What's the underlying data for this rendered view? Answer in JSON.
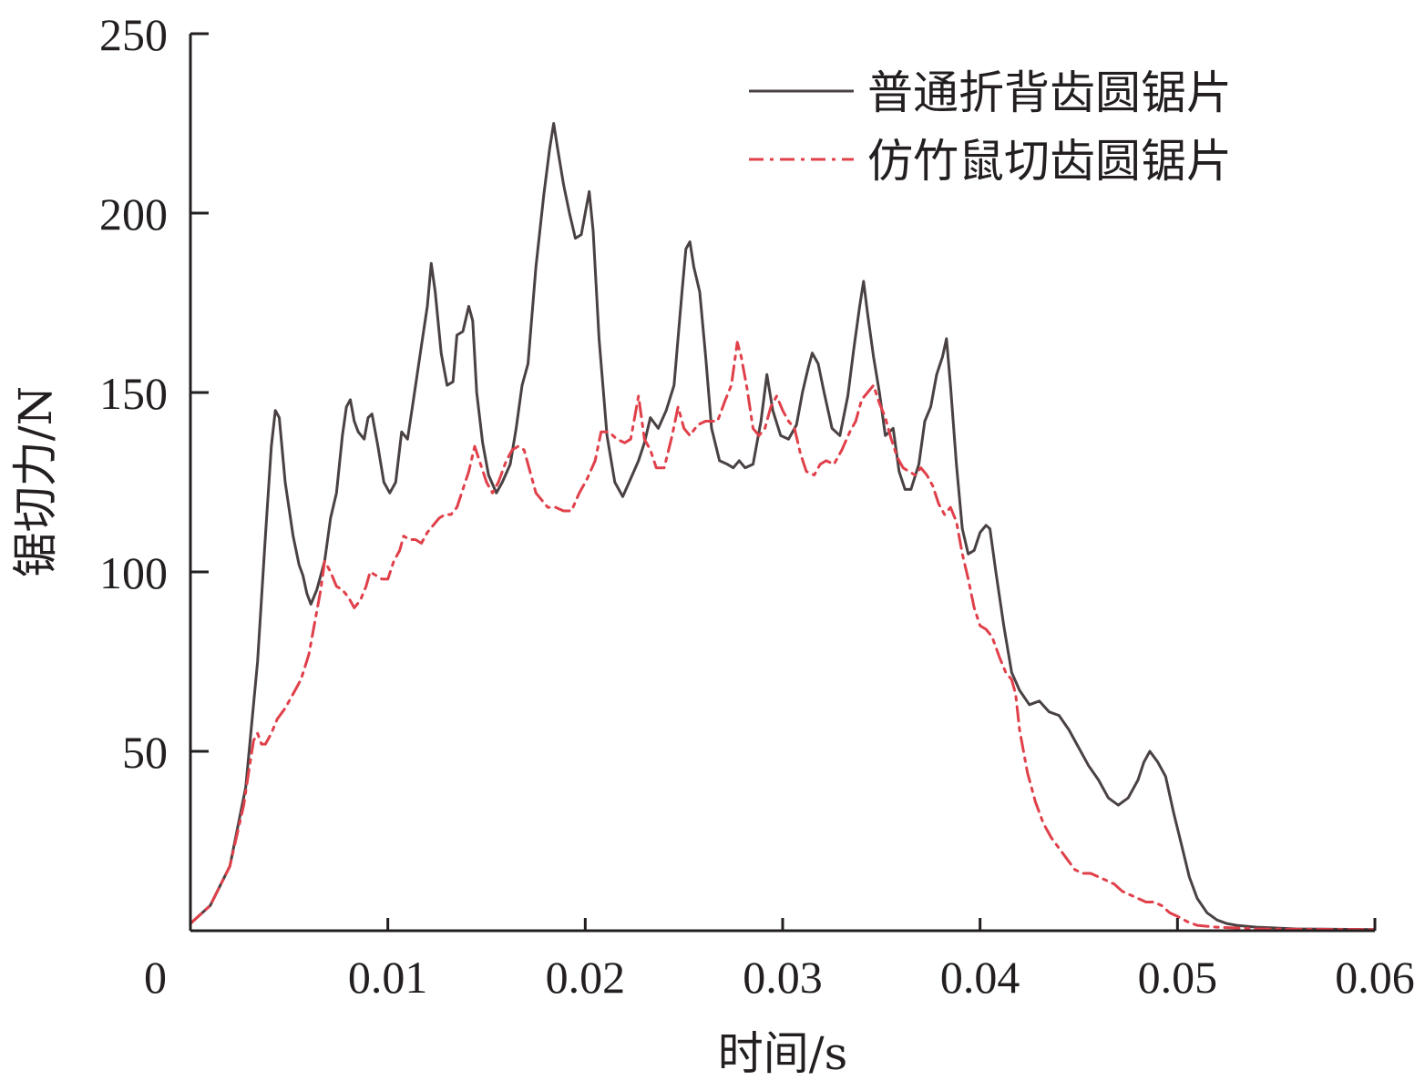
{
  "chart_data": {
    "type": "line",
    "title": "",
    "xlabel": "时间/s",
    "ylabel": "锯切力/N",
    "xlim": [
      0,
      0.06
    ],
    "ylim": [
      0,
      250
    ],
    "xticks": [
      0,
      0.01,
      0.02,
      0.03,
      0.04,
      0.05,
      0.06
    ],
    "xtick_labels": [
      "0",
      "0.01",
      "0.02",
      "0.03",
      "0.04",
      "0.05",
      "0.06"
    ],
    "yticks": [
      50,
      100,
      150,
      200,
      250
    ],
    "ytick_labels": [
      "50",
      "100",
      "150",
      "200",
      "250"
    ],
    "grid": false,
    "legend_position": "top-right",
    "series": [
      {
        "name": "普通折背齿圆锯片",
        "color": "#4a4142",
        "style": "solid",
        "points": [
          [
            0,
            2
          ],
          [
            0.001,
            7
          ],
          [
            0.002,
            18
          ],
          [
            0.0028,
            40
          ],
          [
            0.0034,
            75
          ],
          [
            0.0038,
            110
          ],
          [
            0.0041,
            135
          ],
          [
            0.0043,
            145
          ],
          [
            0.0045,
            143
          ],
          [
            0.0048,
            125
          ],
          [
            0.0052,
            110
          ],
          [
            0.0055,
            102
          ],
          [
            0.0057,
            99
          ],
          [
            0.0059,
            94
          ],
          [
            0.0061,
            91
          ],
          [
            0.0064,
            95
          ],
          [
            0.0068,
            103
          ],
          [
            0.0071,
            115
          ],
          [
            0.0074,
            122
          ],
          [
            0.0077,
            138
          ],
          [
            0.0079,
            146
          ],
          [
            0.0081,
            148
          ],
          [
            0.0083,
            142
          ],
          [
            0.0085,
            139
          ],
          [
            0.0088,
            137
          ],
          [
            0.009,
            143
          ],
          [
            0.0092,
            144
          ],
          [
            0.0095,
            135
          ],
          [
            0.0098,
            125
          ],
          [
            0.0101,
            122
          ],
          [
            0.0104,
            125
          ],
          [
            0.0107,
            139
          ],
          [
            0.011,
            137
          ],
          [
            0.0113,
            148
          ],
          [
            0.0117,
            163
          ],
          [
            0.012,
            174
          ],
          [
            0.0122,
            186
          ],
          [
            0.0124,
            178
          ],
          [
            0.0127,
            161
          ],
          [
            0.013,
            152
          ],
          [
            0.0133,
            153
          ],
          [
            0.0135,
            166
          ],
          [
            0.0138,
            167
          ],
          [
            0.0141,
            174
          ],
          [
            0.0143,
            170
          ],
          [
            0.0145,
            150
          ],
          [
            0.0148,
            136
          ],
          [
            0.0151,
            127
          ],
          [
            0.0155,
            122
          ],
          [
            0.0158,
            125
          ],
          [
            0.0162,
            130
          ],
          [
            0.0165,
            140
          ],
          [
            0.0168,
            152
          ],
          [
            0.0171,
            158
          ],
          [
            0.0175,
            185
          ],
          [
            0.0179,
            205
          ],
          [
            0.0182,
            218
          ],
          [
            0.0184,
            225
          ],
          [
            0.0186,
            218
          ],
          [
            0.0189,
            208
          ],
          [
            0.0192,
            200
          ],
          [
            0.0195,
            193
          ],
          [
            0.0198,
            194
          ],
          [
            0.02,
            200
          ],
          [
            0.0202,
            206
          ],
          [
            0.0204,
            195
          ],
          [
            0.0207,
            165
          ],
          [
            0.0211,
            138
          ],
          [
            0.0215,
            125
          ],
          [
            0.0219,
            121
          ],
          [
            0.0223,
            126
          ],
          [
            0.0227,
            131
          ],
          [
            0.023,
            136
          ],
          [
            0.0233,
            143
          ],
          [
            0.0237,
            140
          ],
          [
            0.0241,
            145
          ],
          [
            0.0245,
            152
          ],
          [
            0.0249,
            178
          ],
          [
            0.0251,
            190
          ],
          [
            0.0253,
            192
          ],
          [
            0.0255,
            185
          ],
          [
            0.0258,
            178
          ],
          [
            0.0261,
            160
          ],
          [
            0.0264,
            140
          ],
          [
            0.0268,
            131
          ],
          [
            0.0272,
            130
          ],
          [
            0.0275,
            129
          ],
          [
            0.0278,
            131
          ],
          [
            0.0281,
            129
          ],
          [
            0.0285,
            130
          ],
          [
            0.0289,
            142
          ],
          [
            0.0292,
            155
          ],
          [
            0.0295,
            145
          ],
          [
            0.0299,
            138
          ],
          [
            0.0303,
            137
          ],
          [
            0.0307,
            141
          ],
          [
            0.031,
            150
          ],
          [
            0.0313,
            157
          ],
          [
            0.0315,
            161
          ],
          [
            0.0318,
            158
          ],
          [
            0.0321,
            150
          ],
          [
            0.0325,
            140
          ],
          [
            0.0329,
            138
          ],
          [
            0.0333,
            149
          ],
          [
            0.0336,
            162
          ],
          [
            0.0339,
            174
          ],
          [
            0.0341,
            181
          ],
          [
            0.0343,
            172
          ],
          [
            0.0346,
            160
          ],
          [
            0.0349,
            150
          ],
          [
            0.0352,
            138
          ],
          [
            0.0356,
            140
          ],
          [
            0.0359,
            128
          ],
          [
            0.0362,
            123
          ],
          [
            0.0365,
            123
          ],
          [
            0.0369,
            130
          ],
          [
            0.0372,
            142
          ],
          [
            0.0375,
            146
          ],
          [
            0.0378,
            155
          ],
          [
            0.0381,
            160
          ],
          [
            0.0383,
            165
          ],
          [
            0.0385,
            152
          ],
          [
            0.0388,
            130
          ],
          [
            0.0391,
            112
          ],
          [
            0.0394,
            105
          ],
          [
            0.0397,
            106
          ],
          [
            0.04,
            111
          ],
          [
            0.0403,
            113
          ],
          [
            0.0405,
            112
          ],
          [
            0.0408,
            100
          ],
          [
            0.0412,
            85
          ],
          [
            0.0416,
            72
          ],
          [
            0.042,
            67
          ],
          [
            0.0425,
            63
          ],
          [
            0.043,
            64
          ],
          [
            0.0435,
            61
          ],
          [
            0.044,
            60
          ],
          [
            0.0445,
            56
          ],
          [
            0.045,
            51
          ],
          [
            0.0455,
            46
          ],
          [
            0.046,
            42
          ],
          [
            0.0465,
            37
          ],
          [
            0.047,
            35
          ],
          [
            0.0475,
            37
          ],
          [
            0.048,
            42
          ],
          [
            0.0483,
            47
          ],
          [
            0.0486,
            50
          ],
          [
            0.049,
            47
          ],
          [
            0.0494,
            43
          ],
          [
            0.0498,
            33
          ],
          [
            0.0502,
            24
          ],
          [
            0.0506,
            15
          ],
          [
            0.051,
            9
          ],
          [
            0.0515,
            5
          ],
          [
            0.052,
            3
          ],
          [
            0.0525,
            2
          ],
          [
            0.053,
            1.5
          ],
          [
            0.054,
            1
          ],
          [
            0.056,
            0.5
          ],
          [
            0.06,
            0.3
          ]
        ]
      },
      {
        "name": "仿竹鼠切齿圆锯片",
        "color": "#e0404a",
        "style": "dash-dot",
        "points": [
          [
            0,
            2
          ],
          [
            0.001,
            7
          ],
          [
            0.002,
            18
          ],
          [
            0.0027,
            35
          ],
          [
            0.003,
            46
          ],
          [
            0.0032,
            53
          ],
          [
            0.0034,
            55
          ],
          [
            0.0036,
            52
          ],
          [
            0.0038,
            52
          ],
          [
            0.0041,
            55
          ],
          [
            0.0044,
            59
          ],
          [
            0.0048,
            62
          ],
          [
            0.0052,
            66
          ],
          [
            0.0056,
            70
          ],
          [
            0.006,
            77
          ],
          [
            0.0063,
            86
          ],
          [
            0.0066,
            95
          ],
          [
            0.0068,
            103
          ],
          [
            0.0071,
            100
          ],
          [
            0.0074,
            96
          ],
          [
            0.0077,
            95
          ],
          [
            0.008,
            93
          ],
          [
            0.0083,
            90
          ],
          [
            0.0086,
            92
          ],
          [
            0.0089,
            96
          ],
          [
            0.0091,
            100
          ],
          [
            0.0094,
            99
          ],
          [
            0.0097,
            98
          ],
          [
            0.01,
            98
          ],
          [
            0.0103,
            103
          ],
          [
            0.0106,
            106
          ],
          [
            0.0108,
            110
          ],
          [
            0.0111,
            109
          ],
          [
            0.0114,
            109
          ],
          [
            0.0117,
            108
          ],
          [
            0.012,
            111
          ],
          [
            0.0123,
            113
          ],
          [
            0.0126,
            115
          ],
          [
            0.0129,
            116
          ],
          [
            0.0132,
            116
          ],
          [
            0.0135,
            118
          ],
          [
            0.0138,
            123
          ],
          [
            0.0141,
            128
          ],
          [
            0.0144,
            135
          ],
          [
            0.0147,
            130
          ],
          [
            0.015,
            125
          ],
          [
            0.0153,
            122
          ],
          [
            0.0156,
            125
          ],
          [
            0.016,
            131
          ],
          [
            0.0163,
            134
          ],
          [
            0.0166,
            135
          ],
          [
            0.0169,
            134
          ],
          [
            0.0172,
            128
          ],
          [
            0.0175,
            122
          ],
          [
            0.0178,
            120
          ],
          [
            0.0181,
            118
          ],
          [
            0.0185,
            118
          ],
          [
            0.0189,
            117
          ],
          [
            0.0193,
            117
          ],
          [
            0.0197,
            122
          ],
          [
            0.0201,
            126
          ],
          [
            0.0205,
            131
          ],
          [
            0.0208,
            139
          ],
          [
            0.0212,
            139
          ],
          [
            0.0216,
            137
          ],
          [
            0.022,
            136
          ],
          [
            0.0223,
            137
          ],
          [
            0.0227,
            149
          ],
          [
            0.023,
            137
          ],
          [
            0.0233,
            134
          ],
          [
            0.0236,
            129
          ],
          [
            0.024,
            129
          ],
          [
            0.0244,
            138
          ],
          [
            0.0247,
            146
          ],
          [
            0.025,
            140
          ],
          [
            0.0253,
            138
          ],
          [
            0.0257,
            141
          ],
          [
            0.0261,
            142
          ],
          [
            0.0264,
            142
          ],
          [
            0.0267,
            142
          ],
          [
            0.0271,
            148
          ],
          [
            0.0274,
            152
          ],
          [
            0.0277,
            164
          ],
          [
            0.0279,
            160
          ],
          [
            0.0282,
            151
          ],
          [
            0.0285,
            140
          ],
          [
            0.0288,
            138
          ],
          [
            0.0291,
            140
          ],
          [
            0.0294,
            146
          ],
          [
            0.0297,
            149
          ],
          [
            0.03,
            145
          ],
          [
            0.0303,
            142
          ],
          [
            0.0306,
            140
          ],
          [
            0.0309,
            133
          ],
          [
            0.0312,
            128
          ],
          [
            0.0316,
            127
          ],
          [
            0.0319,
            130
          ],
          [
            0.0322,
            131
          ],
          [
            0.0326,
            130
          ],
          [
            0.033,
            134
          ],
          [
            0.0334,
            139
          ],
          [
            0.0337,
            142
          ],
          [
            0.034,
            148
          ],
          [
            0.0343,
            150
          ],
          [
            0.0346,
            152
          ],
          [
            0.0349,
            147
          ],
          [
            0.0352,
            143
          ],
          [
            0.0355,
            137
          ],
          [
            0.0358,
            132
          ],
          [
            0.0361,
            129
          ],
          [
            0.0364,
            128
          ],
          [
            0.0367,
            127
          ],
          [
            0.037,
            129
          ],
          [
            0.0373,
            127
          ],
          [
            0.0376,
            124
          ],
          [
            0.0379,
            119
          ],
          [
            0.0382,
            116
          ],
          [
            0.0385,
            118
          ],
          [
            0.0388,
            114
          ],
          [
            0.0391,
            105
          ],
          [
            0.0394,
            98
          ],
          [
            0.0397,
            90
          ],
          [
            0.04,
            85
          ],
          [
            0.0403,
            84
          ],
          [
            0.0406,
            82
          ],
          [
            0.041,
            76
          ],
          [
            0.0413,
            72
          ],
          [
            0.0416,
            70
          ],
          [
            0.0418,
            66
          ],
          [
            0.042,
            56
          ],
          [
            0.0424,
            44
          ],
          [
            0.0428,
            36
          ],
          [
            0.0432,
            30
          ],
          [
            0.0436,
            26
          ],
          [
            0.044,
            23
          ],
          [
            0.0444,
            20
          ],
          [
            0.0448,
            17
          ],
          [
            0.0452,
            16
          ],
          [
            0.0456,
            16
          ],
          [
            0.046,
            15
          ],
          [
            0.0464,
            14
          ],
          [
            0.0468,
            13
          ],
          [
            0.0472,
            11
          ],
          [
            0.0476,
            10
          ],
          [
            0.048,
            9
          ],
          [
            0.0484,
            8
          ],
          [
            0.0488,
            8
          ],
          [
            0.0492,
            7
          ],
          [
            0.0496,
            5
          ],
          [
            0.05,
            4
          ],
          [
            0.0505,
            2.5
          ],
          [
            0.051,
            1.5
          ],
          [
            0.052,
            1
          ],
          [
            0.054,
            0.5
          ],
          [
            0.06,
            0.3
          ]
        ]
      }
    ]
  }
}
